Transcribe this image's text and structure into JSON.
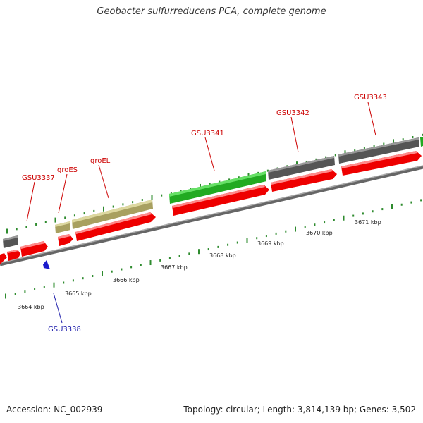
{
  "title": "Geobacter sulfurreducens PCA, complete genome",
  "footer": {
    "accession": "Accession: NC_002939",
    "stats": "Topology: circular; Length: 3,814,139 bp; Genes: 3,502"
  },
  "colors": {
    "cds": "#ff1a1a",
    "gene_gray": "#666666",
    "gene_green": "#33cc33",
    "gene_khaki": "#c8c07a",
    "backbone": "#888888",
    "tick": "#2e8b2e",
    "label_red": "#cc0000",
    "label_blue": "#1a1aaa",
    "marker_blue": "#1a1acc"
  },
  "genes_labeled": [
    "GSU3337",
    "groES",
    "groEL",
    "GSU3341",
    "GSU3342",
    "GSU3343"
  ],
  "gene_below": "GSU3338",
  "kbp_labels": [
    "3664 kbp",
    "3665 kbp",
    "3666 kbp",
    "3667 kbp",
    "3668 kbp",
    "3669 kbp",
    "3670 kbp",
    "3671 kbp"
  ]
}
